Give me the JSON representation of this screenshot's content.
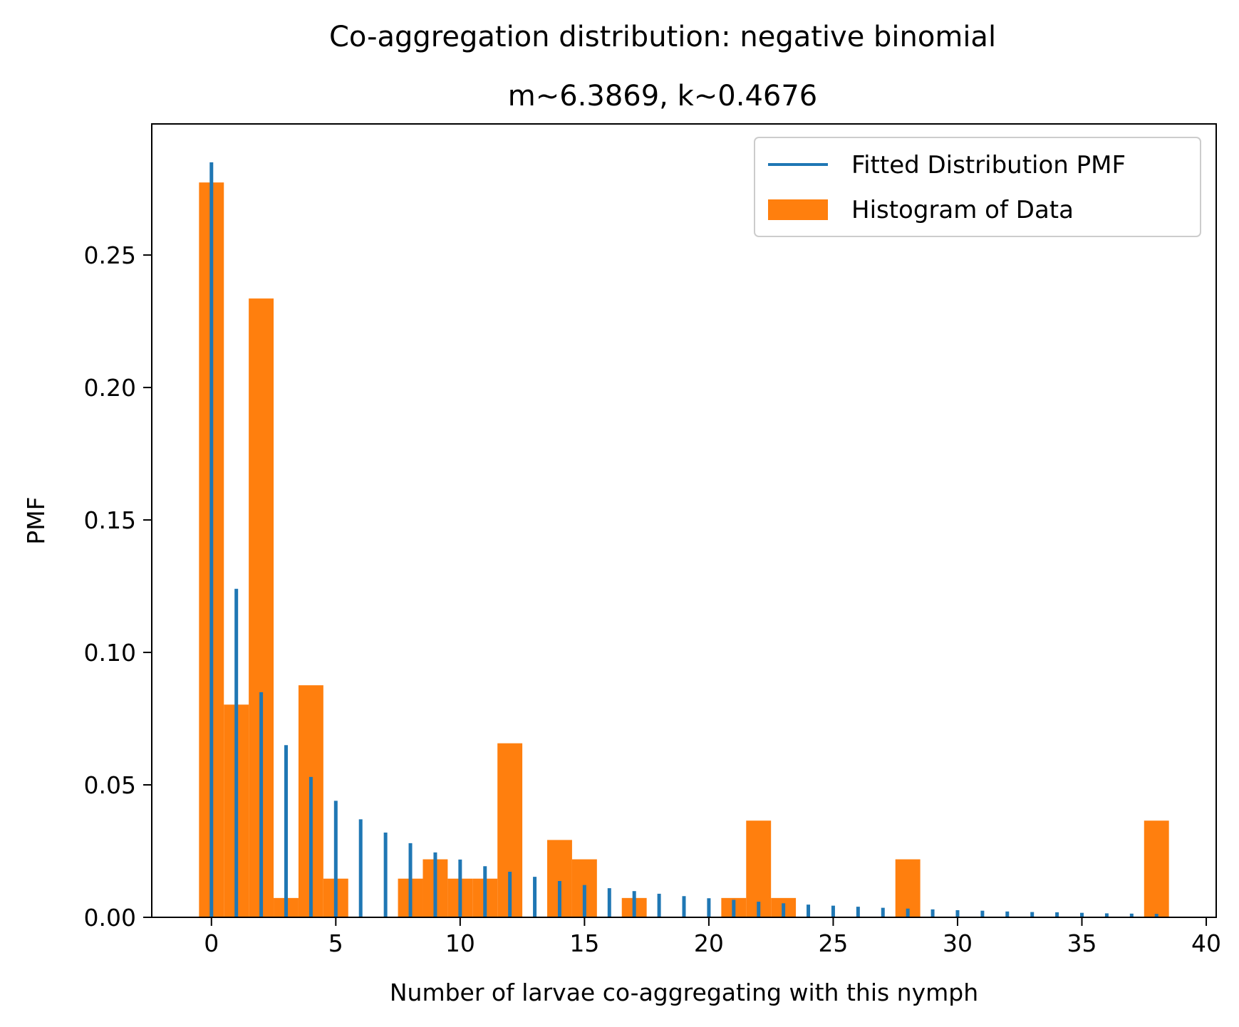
{
  "chart_data": {
    "type": "bar",
    "title": "Co-aggregation distribution: negative binomial",
    "subtitle": "m~6.3869, k~0.4676",
    "xlabel": "Number of larvae co-aggregating with this nymph",
    "ylabel": "PMF",
    "xlim": [
      -2.4,
      40.4
    ],
    "ylim": [
      0,
      0.2995
    ],
    "xticks": [
      0,
      5,
      10,
      15,
      20,
      25,
      30,
      35,
      40
    ],
    "xtick_labels": [
      "0",
      "5",
      "10",
      "15",
      "20",
      "25",
      "30",
      "35",
      "40"
    ],
    "yticks": [
      0.0,
      0.05,
      0.1,
      0.15,
      0.2,
      0.25
    ],
    "ytick_labels": [
      "0.00",
      "0.05",
      "0.10",
      "0.15",
      "0.20",
      "0.25"
    ],
    "grid": false,
    "legend": {
      "position": "top-right",
      "entries": [
        "Fitted Distribution PMF",
        "Histogram of Data"
      ]
    },
    "colors": {
      "pmf": "#1f77b4",
      "histogram": "#ff7f0e"
    },
    "series": [
      {
        "name": "Fitted Distribution PMF",
        "kind": "vlines",
        "x": [
          0,
          1,
          2,
          3,
          4,
          5,
          6,
          7,
          8,
          9,
          10,
          11,
          12,
          13,
          14,
          15,
          16,
          17,
          18,
          19,
          20,
          21,
          22,
          23,
          24,
          25,
          26,
          27,
          28,
          29,
          30,
          31,
          32,
          33,
          34,
          35,
          36,
          37,
          38
        ],
        "values": [
          0.285,
          0.124,
          0.085,
          0.065,
          0.053,
          0.044,
          0.037,
          0.032,
          0.028,
          0.0245,
          0.0218,
          0.0193,
          0.0172,
          0.0153,
          0.0137,
          0.0122,
          0.011,
          0.0099,
          0.0089,
          0.008,
          0.0072,
          0.0066,
          0.0059,
          0.0053,
          0.0048,
          0.0044,
          0.004,
          0.0036,
          0.0033,
          0.003,
          0.0027,
          0.0025,
          0.0022,
          0.002,
          0.0019,
          0.0017,
          0.0015,
          0.0014,
          0.0013
        ]
      },
      {
        "name": "Histogram of Data",
        "kind": "histogram",
        "bin_start": -0.5,
        "bin_width": 1.0,
        "values": [
          0.2774,
          0.0803,
          0.2336,
          0.0073,
          0.0876,
          0.0146,
          0,
          0,
          0.0146,
          0.0219,
          0.0146,
          0.0146,
          0.0657,
          0,
          0.0292,
          0.0219,
          0,
          0.0073,
          0,
          0,
          0,
          0.0073,
          0.0365,
          0.0073,
          0,
          0,
          0,
          0,
          0.0219,
          0,
          0,
          0,
          0,
          0,
          0,
          0,
          0,
          0,
          0.0365
        ]
      }
    ]
  }
}
